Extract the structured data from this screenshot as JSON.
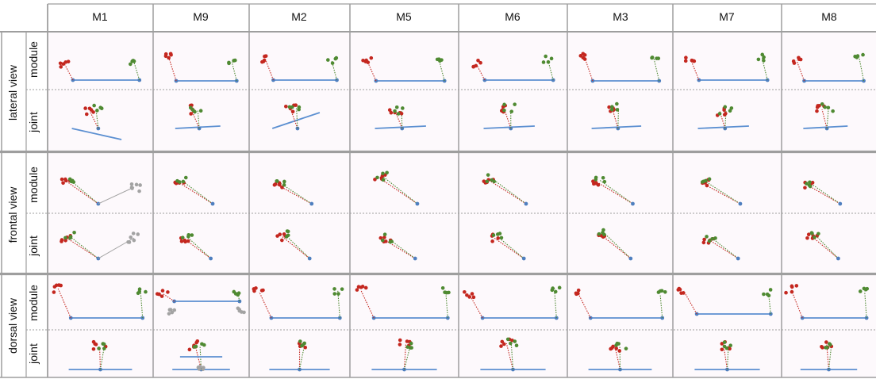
{
  "columns": [
    "M1",
    "M9",
    "M2",
    "M5",
    "M6",
    "M3",
    "M7",
    "M8"
  ],
  "groups": [
    {
      "label": "lateral view",
      "rows": [
        "module",
        "joint"
      ]
    },
    {
      "label": "frontal view",
      "rows": [
        "module",
        "joint"
      ]
    },
    {
      "label": "dorsal view",
      "rows": [
        "module",
        "joint"
      ]
    }
  ],
  "colors": {
    "cell_fill": "#fdf9fc",
    "grid": "#9e9e9e",
    "sub_divider": "#9e9e9e",
    "red_point": "#c4271f",
    "green_point": "#4f8a32",
    "gray_point": "#a3a3a3",
    "base_line": "#5b8fd1",
    "base_node": "#4f7fbf"
  },
  "legend": {
    "position": "none"
  }
}
